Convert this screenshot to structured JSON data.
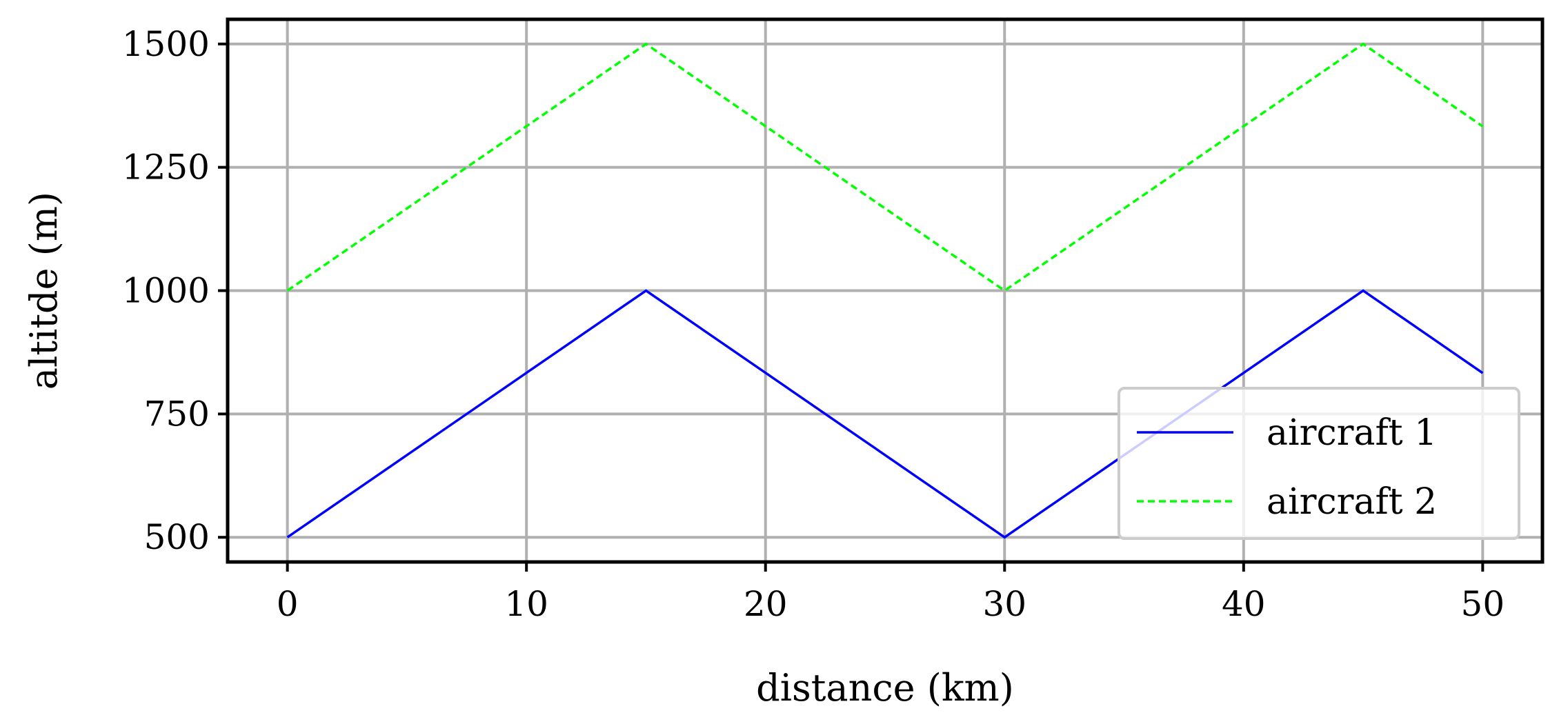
{
  "chart_data": {
    "type": "line",
    "xlabel": "distance (km)",
    "ylabel": "altitde (m)",
    "xlim": [
      -2.5,
      52.5
    ],
    "ylim": [
      450,
      1550
    ],
    "xticks": [
      0,
      10,
      20,
      30,
      40,
      50
    ],
    "yticks": [
      500,
      750,
      1000,
      1250,
      1500
    ],
    "xtick_labels": [
      "0",
      "10",
      "20",
      "30",
      "40",
      "50"
    ],
    "ytick_labels": [
      "500",
      "750",
      "1000",
      "1250",
      "1500"
    ],
    "grid": true,
    "legend_position": "bottom-right",
    "series": [
      {
        "name": "aircraft 1",
        "color": "#0000ff",
        "style": "solid",
        "x": [
          0,
          15,
          30,
          45,
          50
        ],
        "y": [
          500,
          1000,
          500,
          1000,
          833
        ]
      },
      {
        "name": "aircraft 2",
        "color": "#00ff00",
        "style": "dashed",
        "x": [
          0,
          15,
          30,
          45,
          50
        ],
        "y": [
          1000,
          1500,
          1000,
          1500,
          1333
        ]
      }
    ]
  }
}
